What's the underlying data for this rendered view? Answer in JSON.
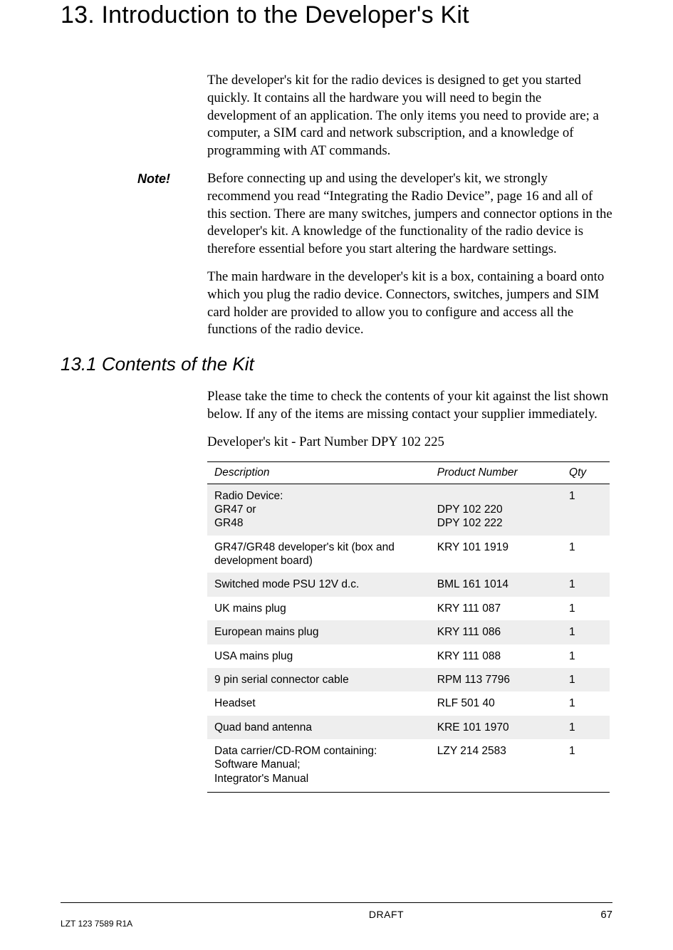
{
  "chapter_title": "13. Introduction to the Developer's Kit",
  "intro_para": "The developer's kit for the radio devices is designed to get you started quickly. It contains all the hardware you will need to begin the development of an application. The only items you need to provide are; a computer, a SIM card and network subscription, and a knowledge of programming with AT commands.",
  "note_label": "Note!",
  "note_text": "Before connecting up and using the developer's kit, we strongly recommend you read “Integrating the Radio Device”, page 16 and all of this section. There are many switches, jumpers and connector options in the developer's kit. A knowledge of the functionality of the radio device is therefore essential before you start altering the hardware settings.",
  "para2": "The main hardware in the developer's kit is a box, containing a board onto which you plug the radio device. Connectors, switches, jumpers and SIM card holder are provided to allow you to configure and access all the functions of the radio device.",
  "section_title": "13.1 Contents of the Kit",
  "section_intro": "Please take the time to check the contents of your kit against the list shown below. If any of the items are missing contact your supplier immediately.",
  "kit_partnum_line": "Developer's kit - Part Number DPY 102 225",
  "table": {
    "headers": {
      "desc": "Description",
      "prod": "Product Number",
      "qty": "Qty"
    },
    "rows": [
      {
        "desc": "Radio Device:\nGR47 or\nGR48",
        "prod": "\nDPY 102 220\nDPY 102 222",
        "qty": "1",
        "shade": true
      },
      {
        "desc": "GR47/GR48 developer's kit (box and development board)",
        "prod": "KRY 101 1919",
        "qty": "1",
        "shade": false
      },
      {
        "desc": "Switched mode PSU 12V d.c.",
        "prod": "BML 161 1014",
        "qty": "1",
        "shade": true
      },
      {
        "desc": "UK mains plug",
        "prod": "KRY 111 087",
        "qty": "1",
        "shade": false
      },
      {
        "desc": "European mains plug",
        "prod": "KRY 111 086",
        "qty": "1",
        "shade": true
      },
      {
        "desc": "USA mains plug",
        "prod": "KRY 111 088",
        "qty": "1",
        "shade": false
      },
      {
        "desc": "9 pin serial connector cable",
        "prod": "RPM 113 7796",
        "qty": "1",
        "shade": true
      },
      {
        "desc": "Headset",
        "prod": "RLF 501 40",
        "qty": "1",
        "shade": false
      },
      {
        "desc": "Quad band antenna",
        "prod": "KRE 101 1970",
        "qty": "1",
        "shade": true
      },
      {
        "desc": "Data carrier/CD-ROM containing:\nSoftware Manual;\nIntegrator's Manual",
        "prod": "LZY 214 2583",
        "qty": "1",
        "shade": false
      }
    ]
  },
  "footer": {
    "draft": "DRAFT",
    "pagenum": "67",
    "docnum": "LZT 123 7589 R1A"
  },
  "colors": {
    "shade_bg": "#eeeeee",
    "text": "#000000",
    "rule": "#000000",
    "page_bg": "#ffffff"
  }
}
